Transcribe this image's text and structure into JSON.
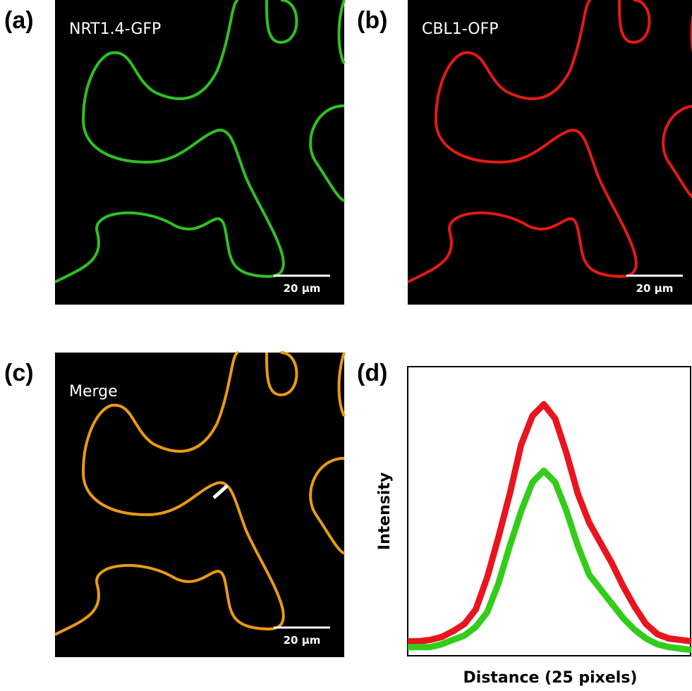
{
  "panels": [
    {
      "label": "(a)",
      "caption": "NRT1.4-GFP",
      "scale_bar": "20 µm"
    },
    {
      "label": "(b)",
      "caption": "CBL1-OFP",
      "scale_bar": "20 µm"
    },
    {
      "label": "(c)",
      "caption": "Merge",
      "scale_bar": "20 µm"
    }
  ],
  "chart_data": {
    "type": "line",
    "panel_label": "(d)",
    "x_label": "Distance (25 pixels)",
    "y_label": "Intensity",
    "x": [
      0,
      1,
      2,
      3,
      4,
      5,
      6,
      7,
      8,
      9,
      10,
      11,
      12,
      13,
      14,
      15,
      16,
      17,
      18,
      19,
      20,
      21,
      22,
      23,
      24,
      25
    ],
    "xlim": [
      0,
      25
    ],
    "ylim": [
      0,
      100
    ],
    "series": [
      {
        "color": "#e8141e",
        "values": [
          5,
          5,
          5.5,
          6.5,
          8.5,
          11,
          16,
          27,
          41,
          56,
          73,
          83,
          87,
          82,
          70,
          56,
          46,
          39,
          32,
          24,
          17,
          11,
          7.5,
          6,
          5.5,
          5
        ]
      },
      {
        "color": "#33cc1a",
        "values": [
          3,
          3,
          3,
          4,
          5.5,
          7,
          10,
          15,
          25,
          38,
          50,
          60,
          64,
          60,
          50,
          38,
          28,
          23,
          18,
          13,
          9,
          6,
          4,
          3,
          2.5,
          2
        ]
      }
    ]
  }
}
